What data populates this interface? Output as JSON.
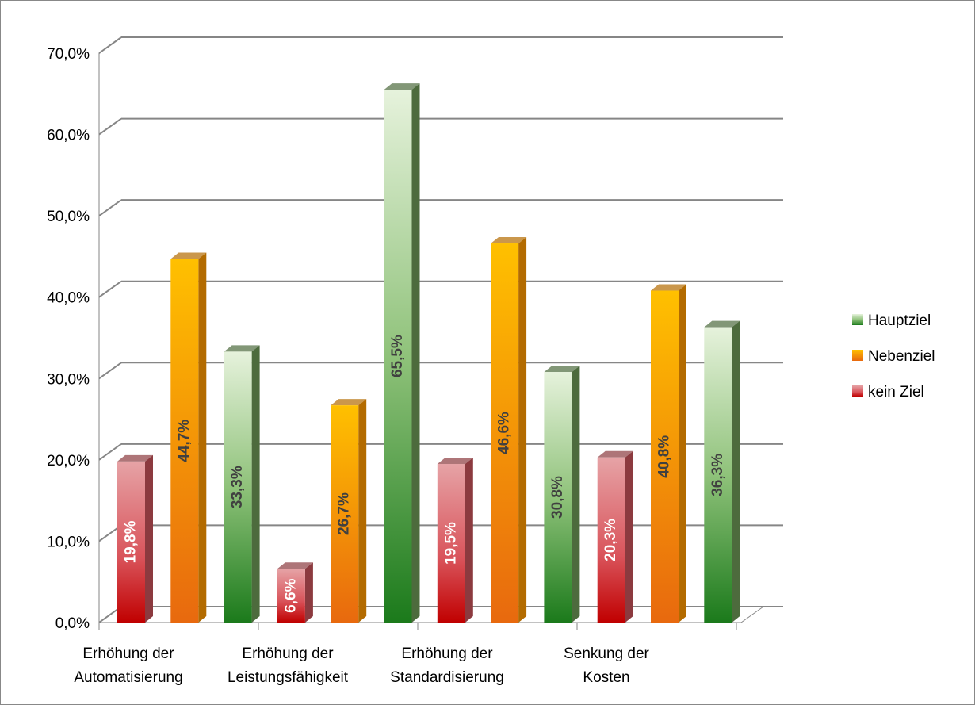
{
  "chart_data": {
    "type": "bar3d",
    "categories": [
      "Erhöhung der Automatisierung",
      "Erhöhung der Leistungsfähigkeit",
      "Erhöhung der Standardisierung",
      "Senkung der Kosten"
    ],
    "series": [
      {
        "name": "Hauptziel",
        "color": "#2e8b2e",
        "values": [
          33.3,
          65.5,
          30.8,
          36.3
        ],
        "value_labels": [
          "33,3%",
          "65,5%",
          "30,8%",
          "36,3%"
        ]
      },
      {
        "name": "Nebenziel",
        "color": "#f39c12",
        "values": [
          44.7,
          26.7,
          46.6,
          40.8
        ],
        "value_labels": [
          "44,7%",
          "26,7%",
          "46,6%",
          "40,8%"
        ]
      },
      {
        "name": "kein Ziel",
        "color": "#d9535a",
        "values": [
          19.8,
          6.6,
          19.5,
          20.3
        ],
        "value_labels": [
          "19,8%",
          "6,6%",
          "19,5%",
          "20,3%"
        ]
      }
    ],
    "ylim": [
      0,
      70
    ],
    "yticks": [
      {
        "value": 0,
        "label": "0,0%"
      },
      {
        "value": 10,
        "label": "10,0%"
      },
      {
        "value": 20,
        "label": "20,0%"
      },
      {
        "value": 30,
        "label": "30,0%"
      },
      {
        "value": 40,
        "label": "40,0%"
      },
      {
        "value": 50,
        "label": "50,0%"
      },
      {
        "value": 60,
        "label": "60,0%"
      },
      {
        "value": 70,
        "label": "70,0%"
      }
    ],
    "grid": true,
    "legend": "right"
  }
}
